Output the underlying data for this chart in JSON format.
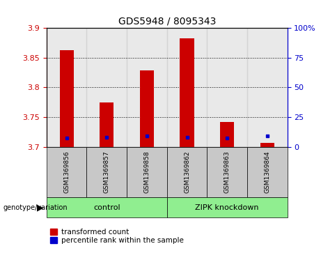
{
  "title": "GDS5948 / 8095343",
  "samples": [
    "GSM1369856",
    "GSM1369857",
    "GSM1369858",
    "GSM1369862",
    "GSM1369863",
    "GSM1369864"
  ],
  "red_values": [
    3.862,
    3.775,
    3.828,
    3.882,
    3.742,
    3.706
  ],
  "blue_values": [
    3.715,
    3.716,
    3.718,
    3.716,
    3.715,
    3.718
  ],
  "ymin": 3.7,
  "ymax": 3.9,
  "yticks_left": [
    3.7,
    3.75,
    3.8,
    3.85,
    3.9
  ],
  "yticks_right_vals": [
    0,
    25,
    50,
    75,
    100
  ],
  "yticks_right_labels": [
    "0",
    "25",
    "50",
    "75",
    "100%"
  ],
  "control_label": "control",
  "knockdown_label": "ZIPK knockdown",
  "group_color": "#90EE90",
  "bar_bg_color": "#C8C8C8",
  "red_color": "#CC0000",
  "blue_color": "#0000CC",
  "left_axis_color": "#CC0000",
  "right_axis_color": "#0000CC",
  "genotype_label": "genotype/variation",
  "legend_red": "transformed count",
  "legend_blue": "percentile rank within the sample",
  "bar_width": 0.35,
  "title_fontsize": 10,
  "tick_fontsize": 8,
  "sample_fontsize": 6.5,
  "group_fontsize": 8,
  "legend_fontsize": 7.5
}
